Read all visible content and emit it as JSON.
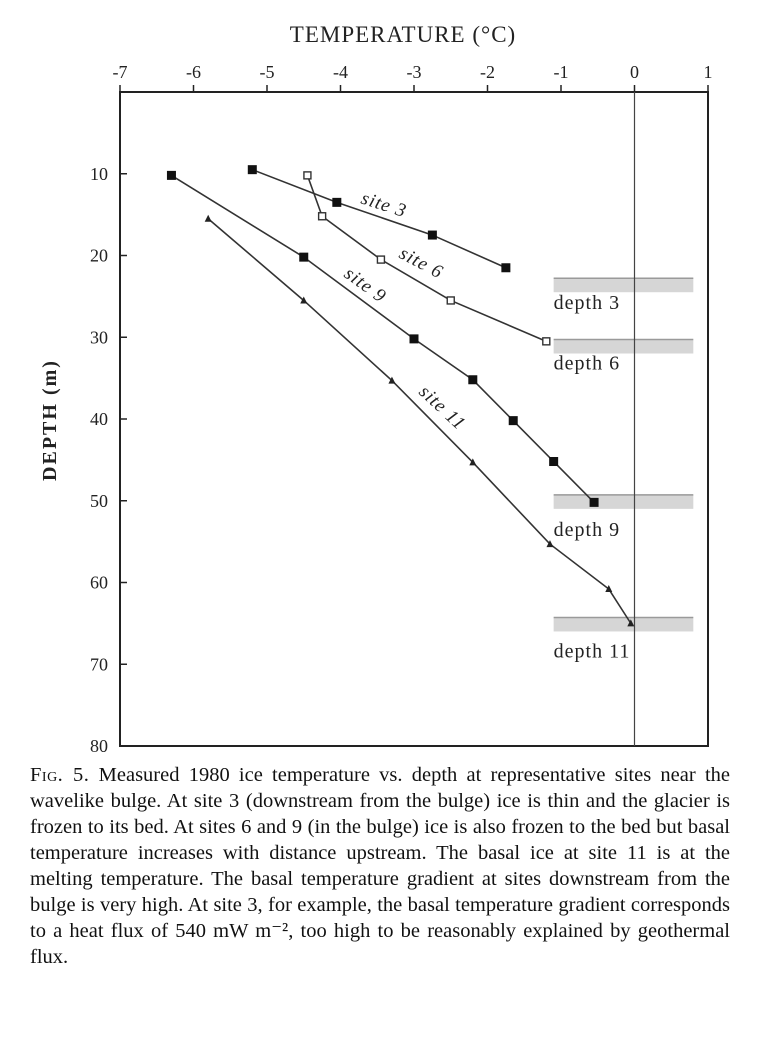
{
  "chart_data": {
    "type": "line",
    "title": "",
    "xlabel": "TEMPERATURE (°C)",
    "ylabel": "DEPTH (m)",
    "xlim": [
      -7,
      1
    ],
    "ylim": [
      80,
      0
    ],
    "x_ticks": [
      "-7",
      "-6",
      "-5",
      "-4",
      "-3",
      "-2",
      "-1",
      "0",
      "1"
    ],
    "y_ticks": [
      "10",
      "20",
      "30",
      "40",
      "50",
      "60",
      "70",
      "80"
    ],
    "grid": false,
    "reference_line_x": 0,
    "series": [
      {
        "name": "site 3",
        "marker": "filled-square",
        "points": [
          [
            -5.2,
            9.5
          ],
          [
            -4.05,
            13.5
          ],
          [
            -2.75,
            17.5
          ],
          [
            -1.75,
            21.5
          ]
        ]
      },
      {
        "name": "site 6",
        "marker": "open-square",
        "points": [
          [
            -4.45,
            10.2
          ],
          [
            -4.25,
            15.2
          ],
          [
            -3.45,
            20.5
          ],
          [
            -2.5,
            25.5
          ],
          [
            -1.2,
            30.5
          ]
        ]
      },
      {
        "name": "site 9",
        "marker": "filled-square",
        "points": [
          [
            -6.3,
            10.2
          ],
          [
            -4.5,
            20.2
          ],
          [
            -3.0,
            30.2
          ],
          [
            -2.2,
            35.2
          ],
          [
            -1.65,
            40.2
          ],
          [
            -1.1,
            45.2
          ],
          [
            -0.55,
            50.2
          ]
        ]
      },
      {
        "name": "site 11",
        "marker": "small-triangle",
        "points": [
          [
            -5.8,
            15.5
          ],
          [
            -4.5,
            25.5
          ],
          [
            -3.3,
            35.3
          ],
          [
            -2.2,
            45.3
          ],
          [
            -1.15,
            55.3
          ],
          [
            -0.35,
            60.8
          ],
          [
            -0.05,
            65.0
          ]
        ]
      }
    ],
    "annotations": [
      {
        "text": "depth 3",
        "depth": 24
      },
      {
        "text": "depth 6",
        "depth": 31.5
      },
      {
        "text": "depth 9",
        "depth": 50.5
      },
      {
        "text": "depth 11",
        "depth": 65.5
      }
    ]
  },
  "caption": {
    "fig_label": "Fig. 5.",
    "text": "Measured 1980 ice temperature vs. depth at representative sites near the wavelike bulge. At site 3 (downstream from the bulge) ice is thin and the glacier is frozen to its bed. At sites 6 and 9 (in the bulge) ice is also frozen to the bed but basal temperature increases with distance upstream. The basal ice at site 11 is at the melting temperature. The basal temperature gradient at sites downstream from the bulge is very high. At site 3, for example, the basal temperature gradient corresponds to a heat flux of 540 mW m⁻², too high to be reasonably explained by geothermal flux."
  }
}
